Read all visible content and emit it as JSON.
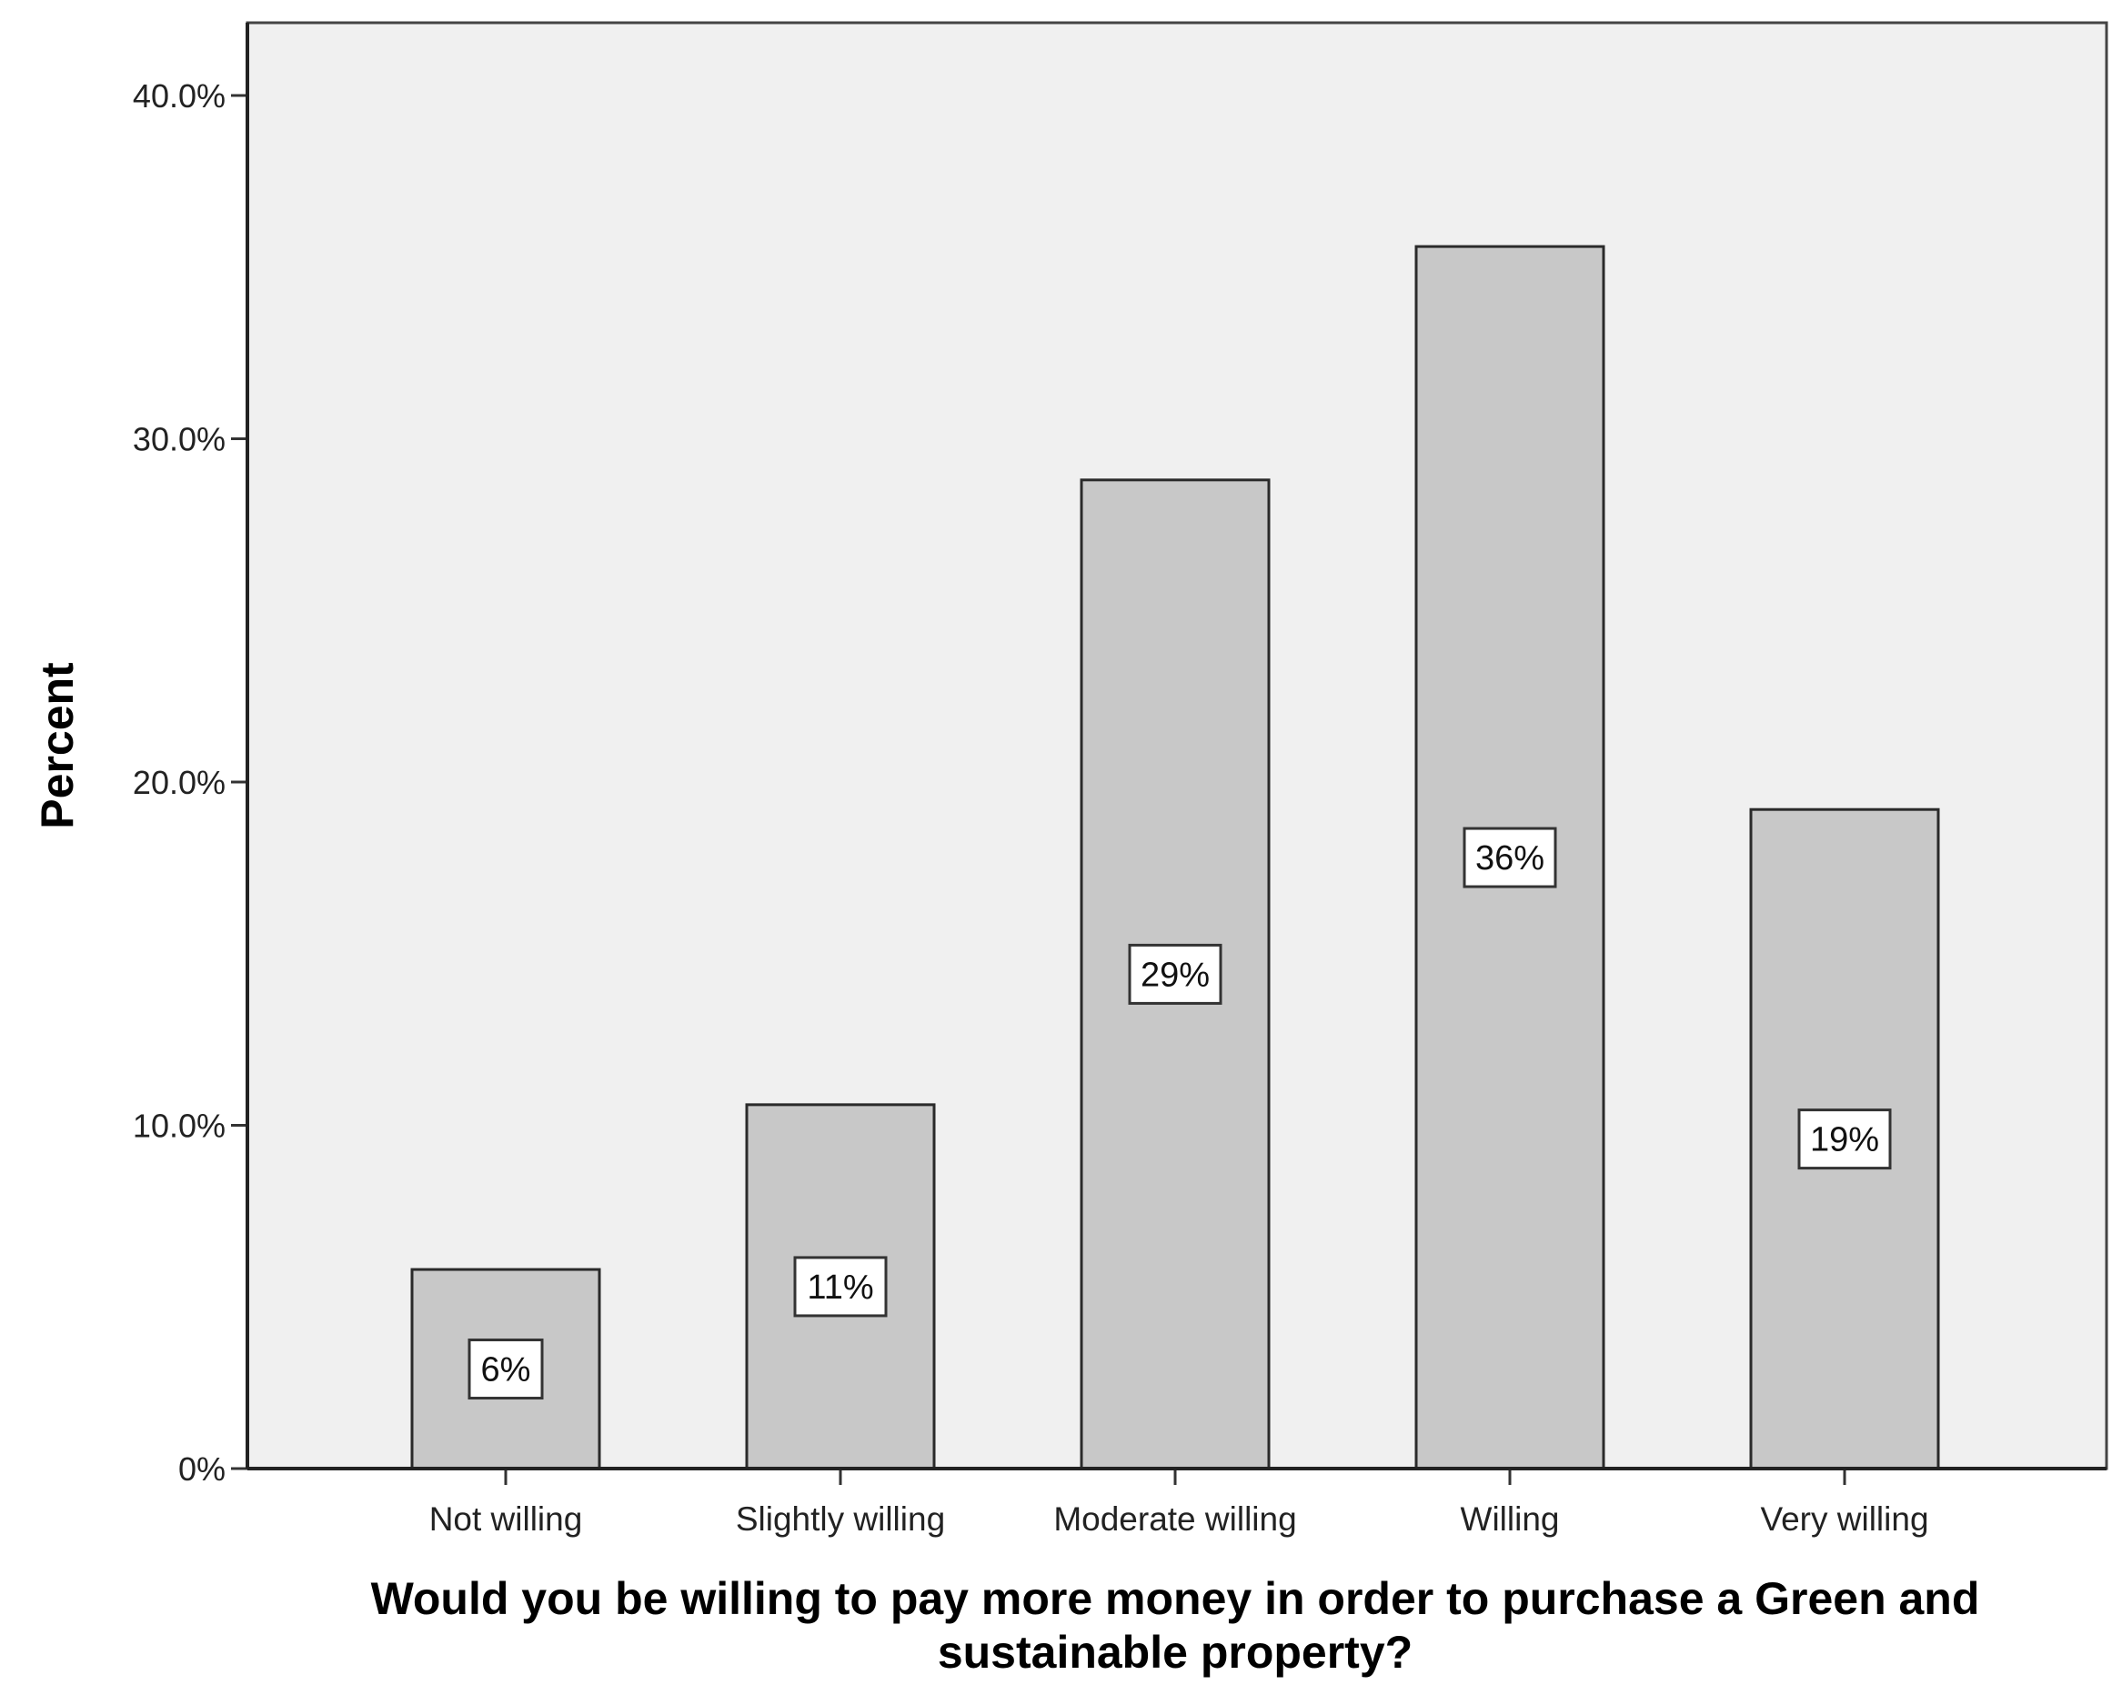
{
  "chart_data": {
    "type": "bar",
    "categories": [
      "Not willing",
      "Slightly willing",
      "Moderate willing",
      "Willing",
      "Very willing"
    ],
    "values": [
      5.8,
      10.6,
      28.8,
      35.6,
      19.2
    ],
    "data_labels": [
      "6%",
      "11%",
      "29%",
      "36%",
      "19%"
    ],
    "ylabel": "Percent",
    "xlabel_lines": [
      "Would you be willing to pay more money in order to purchase a Green and",
      "sustainable property?"
    ],
    "ylim": [
      0,
      40
    ],
    "yticks": [
      0,
      10,
      20,
      30,
      40
    ],
    "ytick_labels": [
      "0%",
      "10.0%",
      "20.0%",
      "30.0%",
      "40.0%"
    ],
    "grid": false,
    "colors": {
      "plot_background": "#f0f0f0",
      "bar_fill": "#c8c8c8",
      "bar_stroke": "#2a2a2a",
      "label_box": "#ffffff"
    }
  }
}
